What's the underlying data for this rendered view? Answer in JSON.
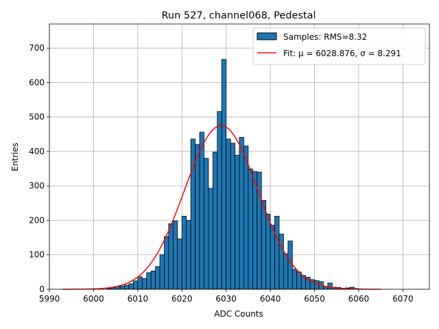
{
  "chart_data": {
    "type": "bar",
    "title": "Run 527, channel068, Pedestal",
    "xlabel": "ADC Counts",
    "ylabel": "Entries",
    "xlim": [
      5990,
      6076
    ],
    "ylim": [
      0,
      770
    ],
    "x_ticks": [
      5990,
      6000,
      6010,
      6020,
      6030,
      6040,
      6050,
      6060,
      6070
    ],
    "y_ticks": [
      0,
      100,
      200,
      300,
      400,
      500,
      600,
      700
    ],
    "grid": true,
    "legend_position": "top-right",
    "bin_width": 1,
    "bins": [
      [
        6003,
        2
      ],
      [
        6004,
        5
      ],
      [
        6005,
        8
      ],
      [
        6006,
        9
      ],
      [
        6007,
        12
      ],
      [
        6008,
        16
      ],
      [
        6009,
        24
      ],
      [
        6010,
        36
      ],
      [
        6011,
        31
      ],
      [
        6012,
        48
      ],
      [
        6013,
        53
      ],
      [
        6014,
        66
      ],
      [
        6015,
        100
      ],
      [
        6016,
        153
      ],
      [
        6017,
        190
      ],
      [
        6018,
        198
      ],
      [
        6019,
        146
      ],
      [
        6020,
        212
      ],
      [
        6021,
        200
      ],
      [
        6022,
        436
      ],
      [
        6023,
        420
      ],
      [
        6024,
        456
      ],
      [
        6025,
        380
      ],
      [
        6026,
        293
      ],
      [
        6027,
        398
      ],
      [
        6028,
        516
      ],
      [
        6029,
        667
      ],
      [
        6030,
        436
      ],
      [
        6031,
        424
      ],
      [
        6032,
        389
      ],
      [
        6033,
        441
      ],
      [
        6034,
        416
      ],
      [
        6035,
        349
      ],
      [
        6036,
        342
      ],
      [
        6037,
        340
      ],
      [
        6038,
        258
      ],
      [
        6039,
        218
      ],
      [
        6040,
        186
      ],
      [
        6041,
        212
      ],
      [
        6042,
        160
      ],
      [
        6043,
        103
      ],
      [
        6044,
        140
      ],
      [
        6045,
        58
      ],
      [
        6046,
        50
      ],
      [
        6047,
        40
      ],
      [
        6048,
        35
      ],
      [
        6049,
        28
      ],
      [
        6050,
        25
      ],
      [
        6051,
        22
      ],
      [
        6052,
        7
      ],
      [
        6053,
        18
      ],
      [
        6054,
        6
      ],
      [
        6055,
        5
      ],
      [
        6056,
        3
      ],
      [
        6057,
        4
      ],
      [
        6058,
        6
      ],
      [
        6059,
        2
      ],
      [
        6060,
        1
      ]
    ],
    "fit": {
      "mu": 6028.876,
      "sigma": 8.291,
      "amplitude": 475,
      "x_range": [
        5993,
        6065
      ]
    },
    "legend": [
      {
        "label": "Samples: RMS=8.32",
        "kind": "bar"
      },
      {
        "label": "Fit: μ = 6028.876, σ = 8.291",
        "kind": "line"
      }
    ],
    "colors": {
      "bar_fill": "#1f77b4",
      "bar_edge": "#000000",
      "fit_line": "#ff0000",
      "grid": "#b0b0b0"
    }
  }
}
